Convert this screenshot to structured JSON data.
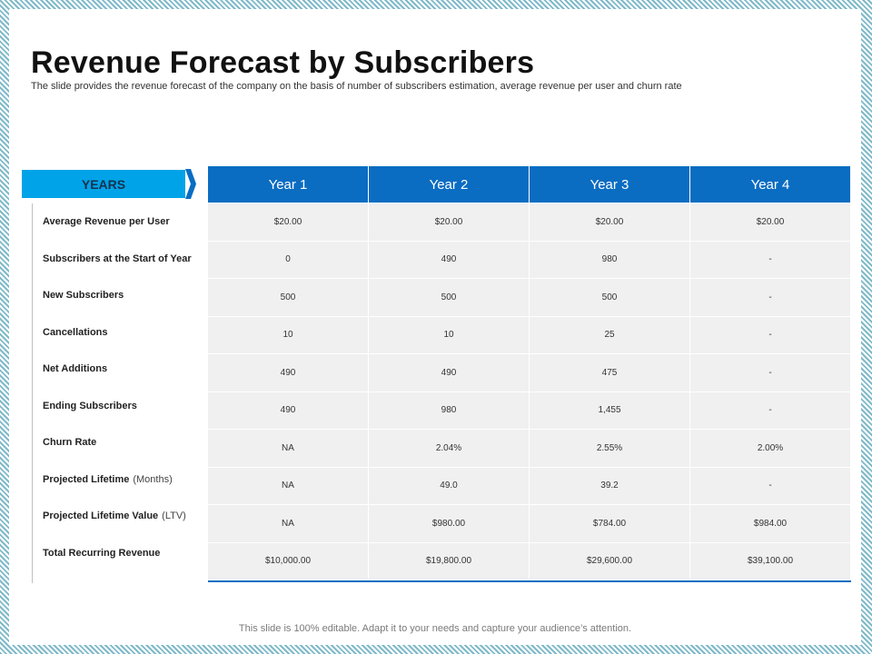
{
  "title": "Revenue Forecast by Subscribers",
  "subtitle": "The slide provides the revenue forecast of the company on the basis of number of subscribers estimation, average revenue per user and churn rate",
  "years_label": "YEARS",
  "columns": [
    "Year 1",
    "Year 2",
    "Year 3",
    "Year 4"
  ],
  "rows": [
    {
      "label": "Average Revenue per User",
      "paren": "",
      "values": [
        "$20.00",
        "$20.00",
        "$20.00",
        "$20.00"
      ]
    },
    {
      "label": "Subscribers at the Start of Year",
      "paren": "",
      "values": [
        "0",
        "490",
        "980",
        "-"
      ]
    },
    {
      "label": "New Subscribers",
      "paren": "",
      "values": [
        "500",
        "500",
        "500",
        "-"
      ]
    },
    {
      "label": "Cancellations",
      "paren": "",
      "values": [
        "10",
        "10",
        "25",
        "-"
      ]
    },
    {
      "label": "Net Additions",
      "paren": "",
      "values": [
        "490",
        "490",
        "475",
        "-"
      ]
    },
    {
      "label": "Ending Subscribers",
      "paren": "",
      "values": [
        "490",
        "980",
        "1,455",
        "-"
      ]
    },
    {
      "label": "Churn Rate",
      "paren": "",
      "values": [
        "NA",
        "2.04%",
        "2.55%",
        "2.00%"
      ]
    },
    {
      "label": "Projected Lifetime",
      "paren": "(Months)",
      "values": [
        "NA",
        "49.0",
        "39.2",
        "-"
      ]
    },
    {
      "label": "Projected Lifetime Value",
      "paren": "(LTV)",
      "values": [
        "NA",
        "$980.00",
        "$784.00",
        "$984.00"
      ]
    },
    {
      "label": "Total Recurring Revenue",
      "paren": "",
      "values": [
        "$10,000.00",
        "$19,800.00",
        "$29,600.00",
        "$39,100.00"
      ]
    }
  ],
  "footer": "This slide is 100% editable. Adapt it to your needs and capture your audience’s attention.",
  "colors": {
    "header_blue": "#0a6dc2",
    "tab_blue": "#00a3e8",
    "row_gray": "#f0f0f0"
  }
}
